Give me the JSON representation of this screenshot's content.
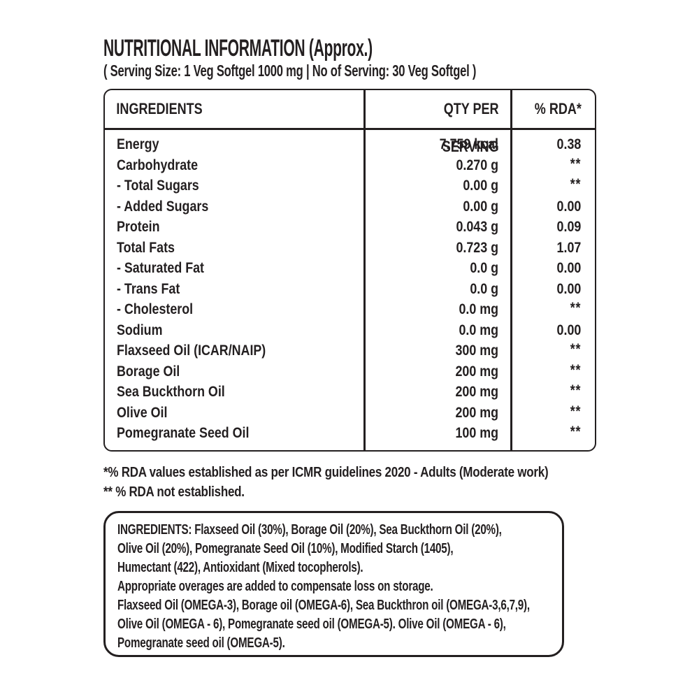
{
  "header": {
    "title": "NUTRITIONAL INFORMATION (Approx.)",
    "serving_line": "( Serving Size: 1 Veg Softgel 1000 mg | No of Serving: 30 Veg Softgel )"
  },
  "table": {
    "columns": [
      "INGREDIENTS",
      "QTY PER SERVING",
      "% RDA*"
    ],
    "rows": [
      {
        "ingredient": "Energy",
        "qty": "7.759 kcal",
        "rda": "0.38"
      },
      {
        "ingredient": "Carbohydrate",
        "qty": "0.270 g",
        "rda": "**"
      },
      {
        "ingredient": "- Total Sugars",
        "qty": "0.00 g",
        "rda": "**"
      },
      {
        "ingredient": "- Added Sugars",
        "qty": "0.00 g",
        "rda": "0.00"
      },
      {
        "ingredient": "Protein",
        "qty": "0.043 g",
        "rda": "0.09"
      },
      {
        "ingredient": "Total Fats",
        "qty": "0.723 g",
        "rda": "1.07"
      },
      {
        "ingredient": "- Saturated Fat",
        "qty": "0.0 g",
        "rda": "0.00"
      },
      {
        "ingredient": "- Trans Fat",
        "qty": "0.0 g",
        "rda": "0.00"
      },
      {
        "ingredient": "- Cholesterol",
        "qty": "0.0 mg",
        "rda": "**"
      },
      {
        "ingredient": "Sodium",
        "qty": "0.0 mg",
        "rda": "0.00"
      },
      {
        "ingredient": "Flaxseed Oil (ICAR/NAIP)",
        "qty": "300 mg",
        "rda": "**"
      },
      {
        "ingredient": "Borage Oil",
        "qty": "200 mg",
        "rda": "**"
      },
      {
        "ingredient": "Sea Buckthorn Oil",
        "qty": "200 mg",
        "rda": "**"
      },
      {
        "ingredient": "Olive Oil",
        "qty": "200 mg",
        "rda": "**"
      },
      {
        "ingredient": "Pomegranate Seed Oil",
        "qty": "100 mg",
        "rda": "**"
      }
    ]
  },
  "footnotes": [
    "*% RDA values established as per ICMR guidelines 2020 - Adults (Moderate work)",
    "** % RDA not established."
  ],
  "ingredients_box": {
    "lines": [
      "INGREDIENTS: Flaxseed Oil (30%), Borage Oil (20%), Sea Buckthorn Oil (20%),",
      "Olive Oil (20%), Pomegranate Seed Oil (10%), Modified Starch (1405),",
      "Humectant (422), Antioxidant (Mixed tocopherols).",
      "Appropriate overages are added to compensate loss on storage.",
      "Flaxseed Oil (OMEGA-3), Borage oil (OMEGA-6), Sea Buckthron oil (OMEGA-3,6,7,9),",
      "Olive Oil (OMEGA - 6), Pomegranate seed oil (OMEGA-5). Olive Oil (OMEGA - 6),",
      "Pomegranate seed oil (OMEGA-5)."
    ]
  },
  "colors": {
    "text": "#231f20",
    "border": "#231f20",
    "background": "#ffffff"
  }
}
